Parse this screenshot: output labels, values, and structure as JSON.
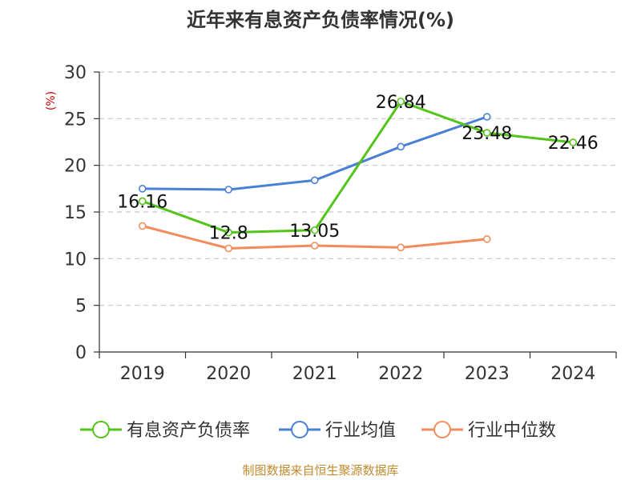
{
  "chart_data": {
    "type": "line",
    "title": "近年来有息资产负债率情况(%)",
    "ylabel": "(%)",
    "categories": [
      "2019",
      "2020",
      "2021",
      "2022",
      "2023",
      "2024"
    ],
    "ylim": [
      0,
      30
    ],
    "yticks": [
      0,
      5,
      10,
      15,
      20,
      25,
      30
    ],
    "grid": true,
    "legend_position": "bottom",
    "series": [
      {
        "name": "有息资产负债率",
        "color": "#52c41a",
        "values": [
          16.16,
          12.8,
          13.05,
          26.84,
          23.48,
          22.46
        ],
        "labels": [
          "16.16",
          "12.8",
          "13.05",
          "26.84",
          "23.48",
          "22.46"
        ]
      },
      {
        "name": "行业均值",
        "color": "#4a7fd6",
        "values": [
          17.5,
          17.4,
          18.4,
          22.0,
          25.2,
          null
        ]
      },
      {
        "name": "行业中位数",
        "color": "#f28c5b",
        "values": [
          13.5,
          11.1,
          11.4,
          11.2,
          12.1,
          null
        ]
      }
    ],
    "source": "制图数据来自恒生聚源数据库"
  }
}
